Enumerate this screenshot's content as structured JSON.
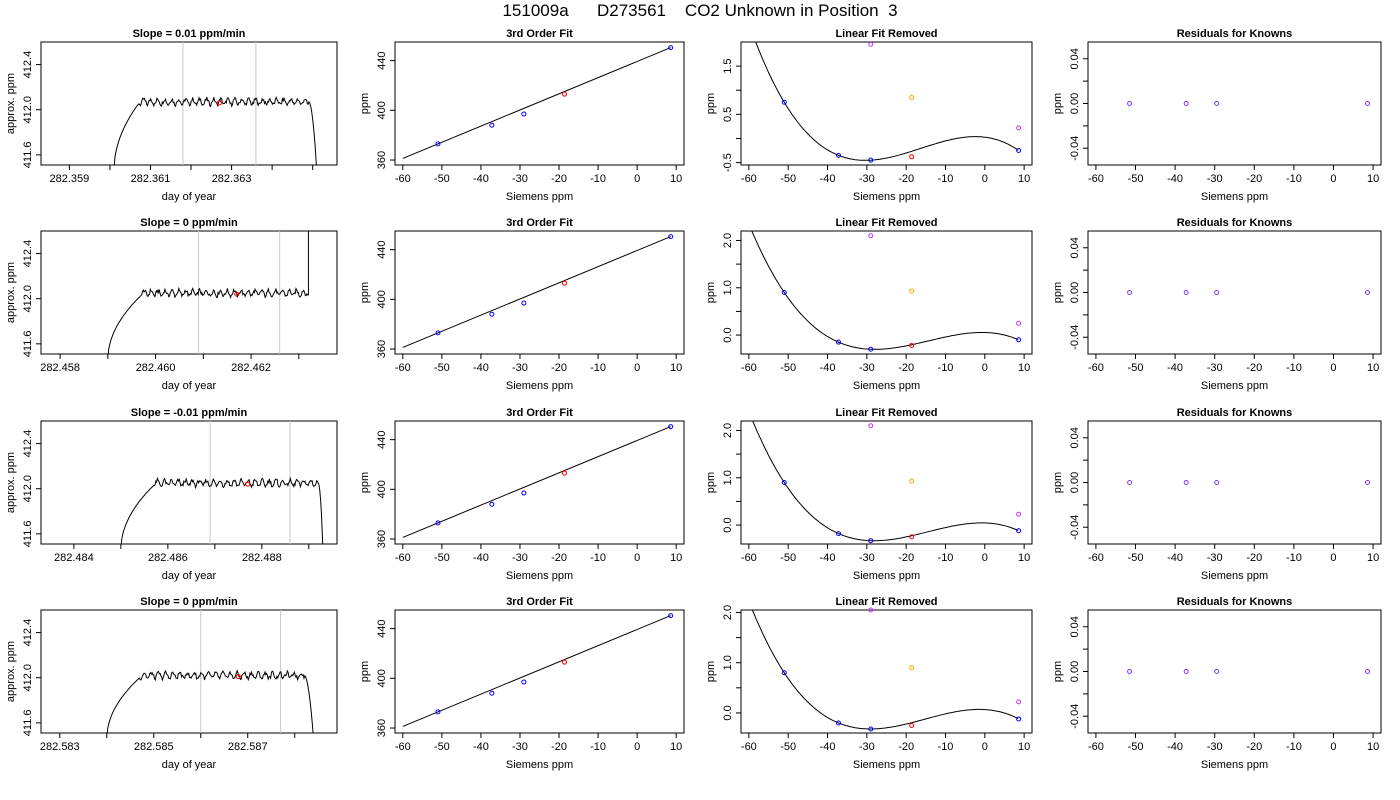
{
  "title_parts": [
    "151009a",
    "D273561",
    "CO2 Unknown in Position  3"
  ],
  "colors": {
    "known": "#0000ff",
    "unknown": "#ff0000",
    "orange": "#ffa500",
    "magenta": "#cc33ff",
    "purple": "#7a3cff",
    "marker": "#c8c8c8"
  },
  "chart_data": [
    {
      "row": 1,
      "time_series": {
        "type": "line",
        "title": "Slope =  0.01  ppm/min",
        "xlabel": "day of year",
        "ylabel": "approx. ppm",
        "xlim": [
          282.3583,
          282.3656
        ],
        "ylim": [
          411.51,
          412.6
        ],
        "xticks": [
          "282.359",
          "282.361",
          "282.363"
        ],
        "yticks": [
          "411.6",
          "412.0",
          "412.4"
        ],
        "rise_start": 282.3601,
        "rise_end": 282.3607,
        "plateau": 412.07,
        "fall_start": 282.3649,
        "fall_end": 282.3651,
        "markers_x": [
          282.3618,
          282.3636
        ],
        "unknown_point": [
          282.3627,
          412.06
        ]
      },
      "fit": {
        "type": "scatter",
        "title": "3rd Order Fit",
        "xlabel": "Siemens ppm",
        "ylabel": "ppm",
        "xticks": [
          "-60",
          "-50",
          "-40",
          "-30",
          "-20",
          "-10",
          "0",
          "10"
        ],
        "yticks": [
          "360",
          "400",
          "440"
        ],
        "known": [
          [
            -51,
            373
          ],
          [
            -37.2,
            388
          ],
          [
            -29,
            397
          ],
          [
            8.6,
            450.5
          ]
        ],
        "unknown": [
          [
            -18.6,
            413
          ]
        ]
      },
      "linear_removed": {
        "type": "scatter",
        "title": "Linear Fit Removed",
        "xlabel": "Siemens ppm",
        "ylabel": "ppm",
        "ylim": [
          -0.55,
          2.0
        ],
        "yticks": [
          "-0.5",
          "0.5",
          "1.5"
        ],
        "known": [
          [
            -51,
            0.75
          ],
          [
            -37.2,
            -0.35
          ],
          [
            -29,
            -0.45
          ],
          [
            8.6,
            -0.25
          ]
        ],
        "unknown": [
          [
            -18.6,
            -0.38
          ]
        ],
        "magenta": [
          [
            -29,
            1.95
          ],
          [
            8.6,
            0.22
          ]
        ],
        "orange": [
          [
            -18.6,
            0.85
          ]
        ]
      },
      "residuals": {
        "type": "scatter",
        "title": "Residuals for Knowns",
        "xlabel": "Siemens ppm",
        "ylabel": "ppm",
        "yticks": [
          "-0.04",
          "0.00",
          "0.04"
        ],
        "points": [
          [
            -51.5,
            0
          ],
          [
            -37.2,
            0
          ],
          [
            -29.5,
            0
          ],
          [
            8.6,
            0
          ]
        ]
      }
    },
    {
      "row": 2,
      "time_series": {
        "type": "line",
        "title": "Slope =  0  ppm/min",
        "xlabel": "day of year",
        "ylabel": "approx. ppm",
        "xlim": [
          282.4576,
          282.4638
        ],
        "ylim": [
          411.51,
          412.6
        ],
        "xticks": [
          "282.458",
          "282.460",
          "282.462"
        ],
        "yticks": [
          "411.6",
          "412.0",
          "412.4"
        ],
        "rise_start": 282.459,
        "rise_end": 282.4597,
        "plateau": 412.05,
        "spike_x": 282.4632,
        "markers_x": [
          282.4609,
          282.4626
        ],
        "unknown_point": [
          282.4617,
          412.04
        ]
      },
      "fit": {
        "type": "scatter",
        "title": "3rd Order Fit",
        "xlabel": "Siemens ppm",
        "ylabel": "ppm",
        "xticks": [
          "-60",
          "-50",
          "-40",
          "-30",
          "-20",
          "-10",
          "0",
          "10"
        ],
        "yticks": [
          "360",
          "400",
          "440"
        ],
        "known": [
          [
            -51,
            373
          ],
          [
            -37.2,
            388
          ],
          [
            -29,
            397
          ],
          [
            8.6,
            450.5
          ]
        ],
        "unknown": [
          [
            -18.6,
            413
          ]
        ]
      },
      "linear_removed": {
        "type": "scatter",
        "title": "Linear Fit Removed",
        "xlabel": "Siemens ppm",
        "ylabel": "ppm",
        "ylim": [
          -0.4,
          2.2
        ],
        "yticks": [
          "0.0",
          "1.0",
          "2.0"
        ],
        "known": [
          [
            -51,
            0.9
          ],
          [
            -37.2,
            -0.15
          ],
          [
            -29,
            -0.3
          ],
          [
            8.6,
            -0.1
          ]
        ],
        "unknown": [
          [
            -18.6,
            -0.22
          ]
        ],
        "magenta": [
          [
            -29,
            2.1
          ],
          [
            8.6,
            0.25
          ]
        ],
        "orange": [
          [
            -18.6,
            0.93
          ]
        ]
      },
      "residuals": {
        "type": "scatter",
        "title": "Residuals for Knowns",
        "xlabel": "Siemens ppm",
        "ylabel": "ppm",
        "yticks": [
          "-0.04",
          "0.00",
          "0.04"
        ],
        "points": [
          [
            -51.5,
            0
          ],
          [
            -37.2,
            0
          ],
          [
            -29.5,
            0
          ],
          [
            8.6,
            0
          ]
        ]
      }
    },
    {
      "row": 3,
      "time_series": {
        "type": "line",
        "title": "Slope =  -0.01  ppm/min",
        "xlabel": "day of year",
        "ylabel": "approx. ppm",
        "xlim": [
          282.4833,
          282.4896
        ],
        "ylim": [
          411.51,
          412.6
        ],
        "xticks": [
          "282.484",
          "282.486",
          "282.488"
        ],
        "yticks": [
          "411.6",
          "412.0",
          "412.4"
        ],
        "rise_start": 282.485,
        "rise_end": 282.4857,
        "plateau": 412.05,
        "fall_start": 282.4892,
        "fall_end": 282.4893,
        "markers_x": [
          282.4869,
          282.4886
        ],
        "unknown_point": [
          282.4877,
          412.04
        ]
      },
      "fit": {
        "type": "scatter",
        "title": "3rd Order Fit",
        "xlabel": "Siemens ppm",
        "ylabel": "ppm",
        "xticks": [
          "-60",
          "-50",
          "-40",
          "-30",
          "-20",
          "-10",
          "0",
          "10"
        ],
        "yticks": [
          "360",
          "400",
          "440"
        ],
        "known": [
          [
            -51,
            373
          ],
          [
            -37.2,
            388
          ],
          [
            -29,
            397
          ],
          [
            8.6,
            450.5
          ]
        ],
        "unknown": [
          [
            -18.6,
            413
          ]
        ]
      },
      "linear_removed": {
        "type": "scatter",
        "title": "Linear Fit Removed",
        "xlabel": "Siemens ppm",
        "ylabel": "ppm",
        "ylim": [
          -0.4,
          2.2
        ],
        "yticks": [
          "0.0",
          "1.0",
          "2.0"
        ],
        "known": [
          [
            -51,
            0.9
          ],
          [
            -37.2,
            -0.18
          ],
          [
            -29,
            -0.33
          ],
          [
            8.6,
            -0.12
          ]
        ],
        "unknown": [
          [
            -18.6,
            -0.25
          ]
        ],
        "magenta": [
          [
            -29,
            2.1
          ],
          [
            8.6,
            0.23
          ]
        ],
        "orange": [
          [
            -18.6,
            0.93
          ]
        ]
      },
      "residuals": {
        "type": "scatter",
        "title": "Residuals for Knowns",
        "xlabel": "Siemens ppm",
        "ylabel": "ppm",
        "yticks": [
          "-0.04",
          "0.00",
          "0.04"
        ],
        "points": [
          [
            -51.5,
            0
          ],
          [
            -37.2,
            0
          ],
          [
            -29.5,
            0
          ],
          [
            8.6,
            0
          ]
        ]
      }
    },
    {
      "row": 4,
      "time_series": {
        "type": "line",
        "title": "Slope =  0  ppm/min",
        "xlabel": "day of year",
        "ylabel": "approx. ppm",
        "xlim": [
          282.5826,
          282.5889
        ],
        "ylim": [
          411.51,
          412.6
        ],
        "xticks": [
          "282.583",
          "282.585",
          "282.587"
        ],
        "yticks": [
          "411.6",
          "412.0",
          "412.4"
        ],
        "rise_start": 282.584,
        "rise_end": 282.5847,
        "plateau": 412.02,
        "fall_start": 282.5882,
        "fall_end": 282.5884,
        "markers_x": [
          282.586,
          282.5877
        ],
        "unknown_point": [
          282.5868,
          412.01
        ]
      },
      "fit": {
        "type": "scatter",
        "title": "3rd Order Fit",
        "xlabel": "Siemens ppm",
        "ylabel": "ppm",
        "xticks": [
          "-60",
          "-50",
          "-40",
          "-30",
          "-20",
          "-10",
          "0",
          "10"
        ],
        "yticks": [
          "360",
          "400",
          "440"
        ],
        "known": [
          [
            -51,
            373
          ],
          [
            -37.2,
            388
          ],
          [
            -29,
            397
          ],
          [
            8.6,
            450.5
          ]
        ],
        "unknown": [
          [
            -18.6,
            413
          ]
        ]
      },
      "linear_removed": {
        "type": "scatter",
        "title": "Linear Fit Removed",
        "xlabel": "Siemens ppm",
        "ylabel": "ppm",
        "ylim": [
          -0.4,
          2.05
        ],
        "yticks": [
          "0.0",
          "1.0",
          "2.0"
        ],
        "known": [
          [
            -51,
            0.8
          ],
          [
            -37.2,
            -0.2
          ],
          [
            -29,
            -0.32
          ],
          [
            8.6,
            -0.12
          ]
        ],
        "unknown": [
          [
            -18.6,
            -0.25
          ]
        ],
        "magenta": [
          [
            -29,
            2.05
          ],
          [
            8.6,
            0.22
          ]
        ],
        "orange": [
          [
            -18.6,
            0.9
          ]
        ]
      },
      "residuals": {
        "type": "scatter",
        "title": "Residuals for Knowns",
        "xlabel": "Siemens ppm",
        "ylabel": "ppm",
        "yticks": [
          "-0.04",
          "0.00",
          "0.04"
        ],
        "points": [
          [
            -51.5,
            0
          ],
          [
            -37.2,
            0
          ],
          [
            -29.5,
            0
          ],
          [
            8.6,
            0
          ]
        ]
      }
    }
  ]
}
